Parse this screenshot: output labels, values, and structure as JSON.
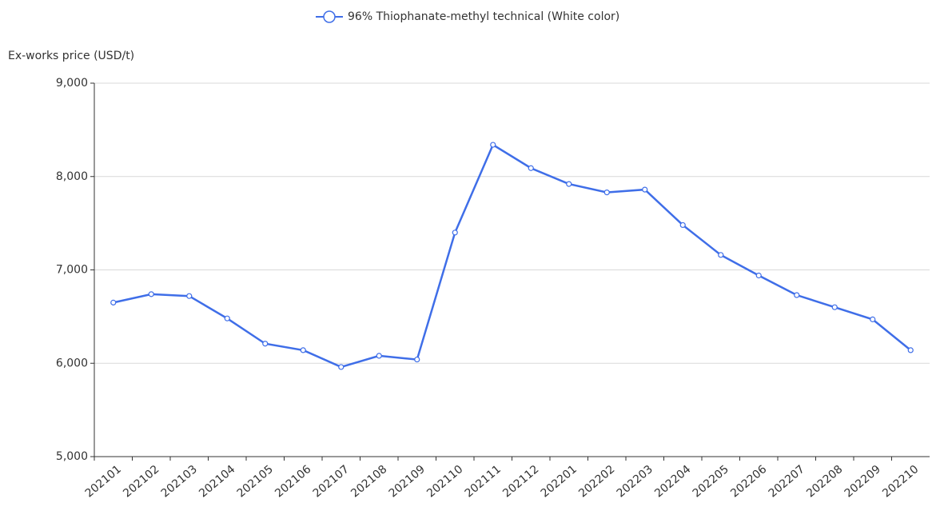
{
  "chart_data": {
    "type": "line",
    "y_axis_label": "Ex-works price (USD/t)",
    "categories": [
      "202101",
      "202102",
      "202103",
      "202104",
      "202105",
      "202106",
      "202107",
      "202108",
      "202109",
      "202110",
      "202111",
      "202112",
      "202201",
      "202202",
      "202203",
      "202204",
      "202205",
      "202206",
      "202207",
      "202208",
      "202209",
      "202210"
    ],
    "series": [
      {
        "name": "96% Thiophanate-methyl technical (White color)",
        "color": "#3f6ee8",
        "values": [
          6650,
          6740,
          6720,
          6480,
          6210,
          6140,
          5960,
          6080,
          6040,
          7400,
          8340,
          8090,
          7920,
          7830,
          7860,
          7480,
          7160,
          6940,
          6730,
          6600,
          6470,
          6140
        ]
      }
    ],
    "ylim": [
      5000,
      9000
    ],
    "yticks": [
      {
        "value": 5000,
        "label": "5,000"
      },
      {
        "value": 6000,
        "label": "6,000"
      },
      {
        "value": 7000,
        "label": "7,000"
      },
      {
        "value": 8000,
        "label": "8,000"
      },
      {
        "value": 9000,
        "label": "9,000"
      }
    ],
    "grid": true,
    "legend": "top"
  }
}
